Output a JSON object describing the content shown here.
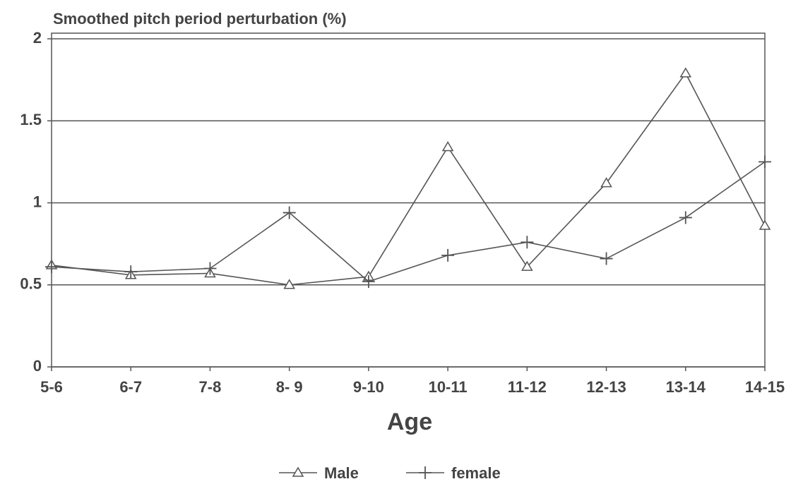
{
  "chart_data": {
    "type": "line",
    "title": "Smoothed pitch period perturbation (%)",
    "x_label": "Age",
    "categories": [
      "5-6",
      "6-7",
      "7-8",
      "8- 9",
      "9-10",
      "10-11",
      "11-12",
      "12-13",
      "13-14",
      "14-15"
    ],
    "series": [
      {
        "name": "Male",
        "color": "#555555",
        "marker": "triangle",
        "values": [
          0.62,
          0.56,
          0.57,
          0.5,
          0.55,
          1.34,
          0.61,
          1.12,
          1.79,
          0.86
        ]
      },
      {
        "name": "female",
        "color": "#555555",
        "marker": "plus",
        "values": [
          0.61,
          0.58,
          0.6,
          0.94,
          0.52,
          0.68,
          0.76,
          0.66,
          0.91,
          1.25
        ]
      }
    ],
    "ylim": [
      0,
      2
    ],
    "yticks": [
      0,
      0.5,
      1,
      1.5,
      2
    ],
    "grid": true,
    "legend": "bottom"
  }
}
